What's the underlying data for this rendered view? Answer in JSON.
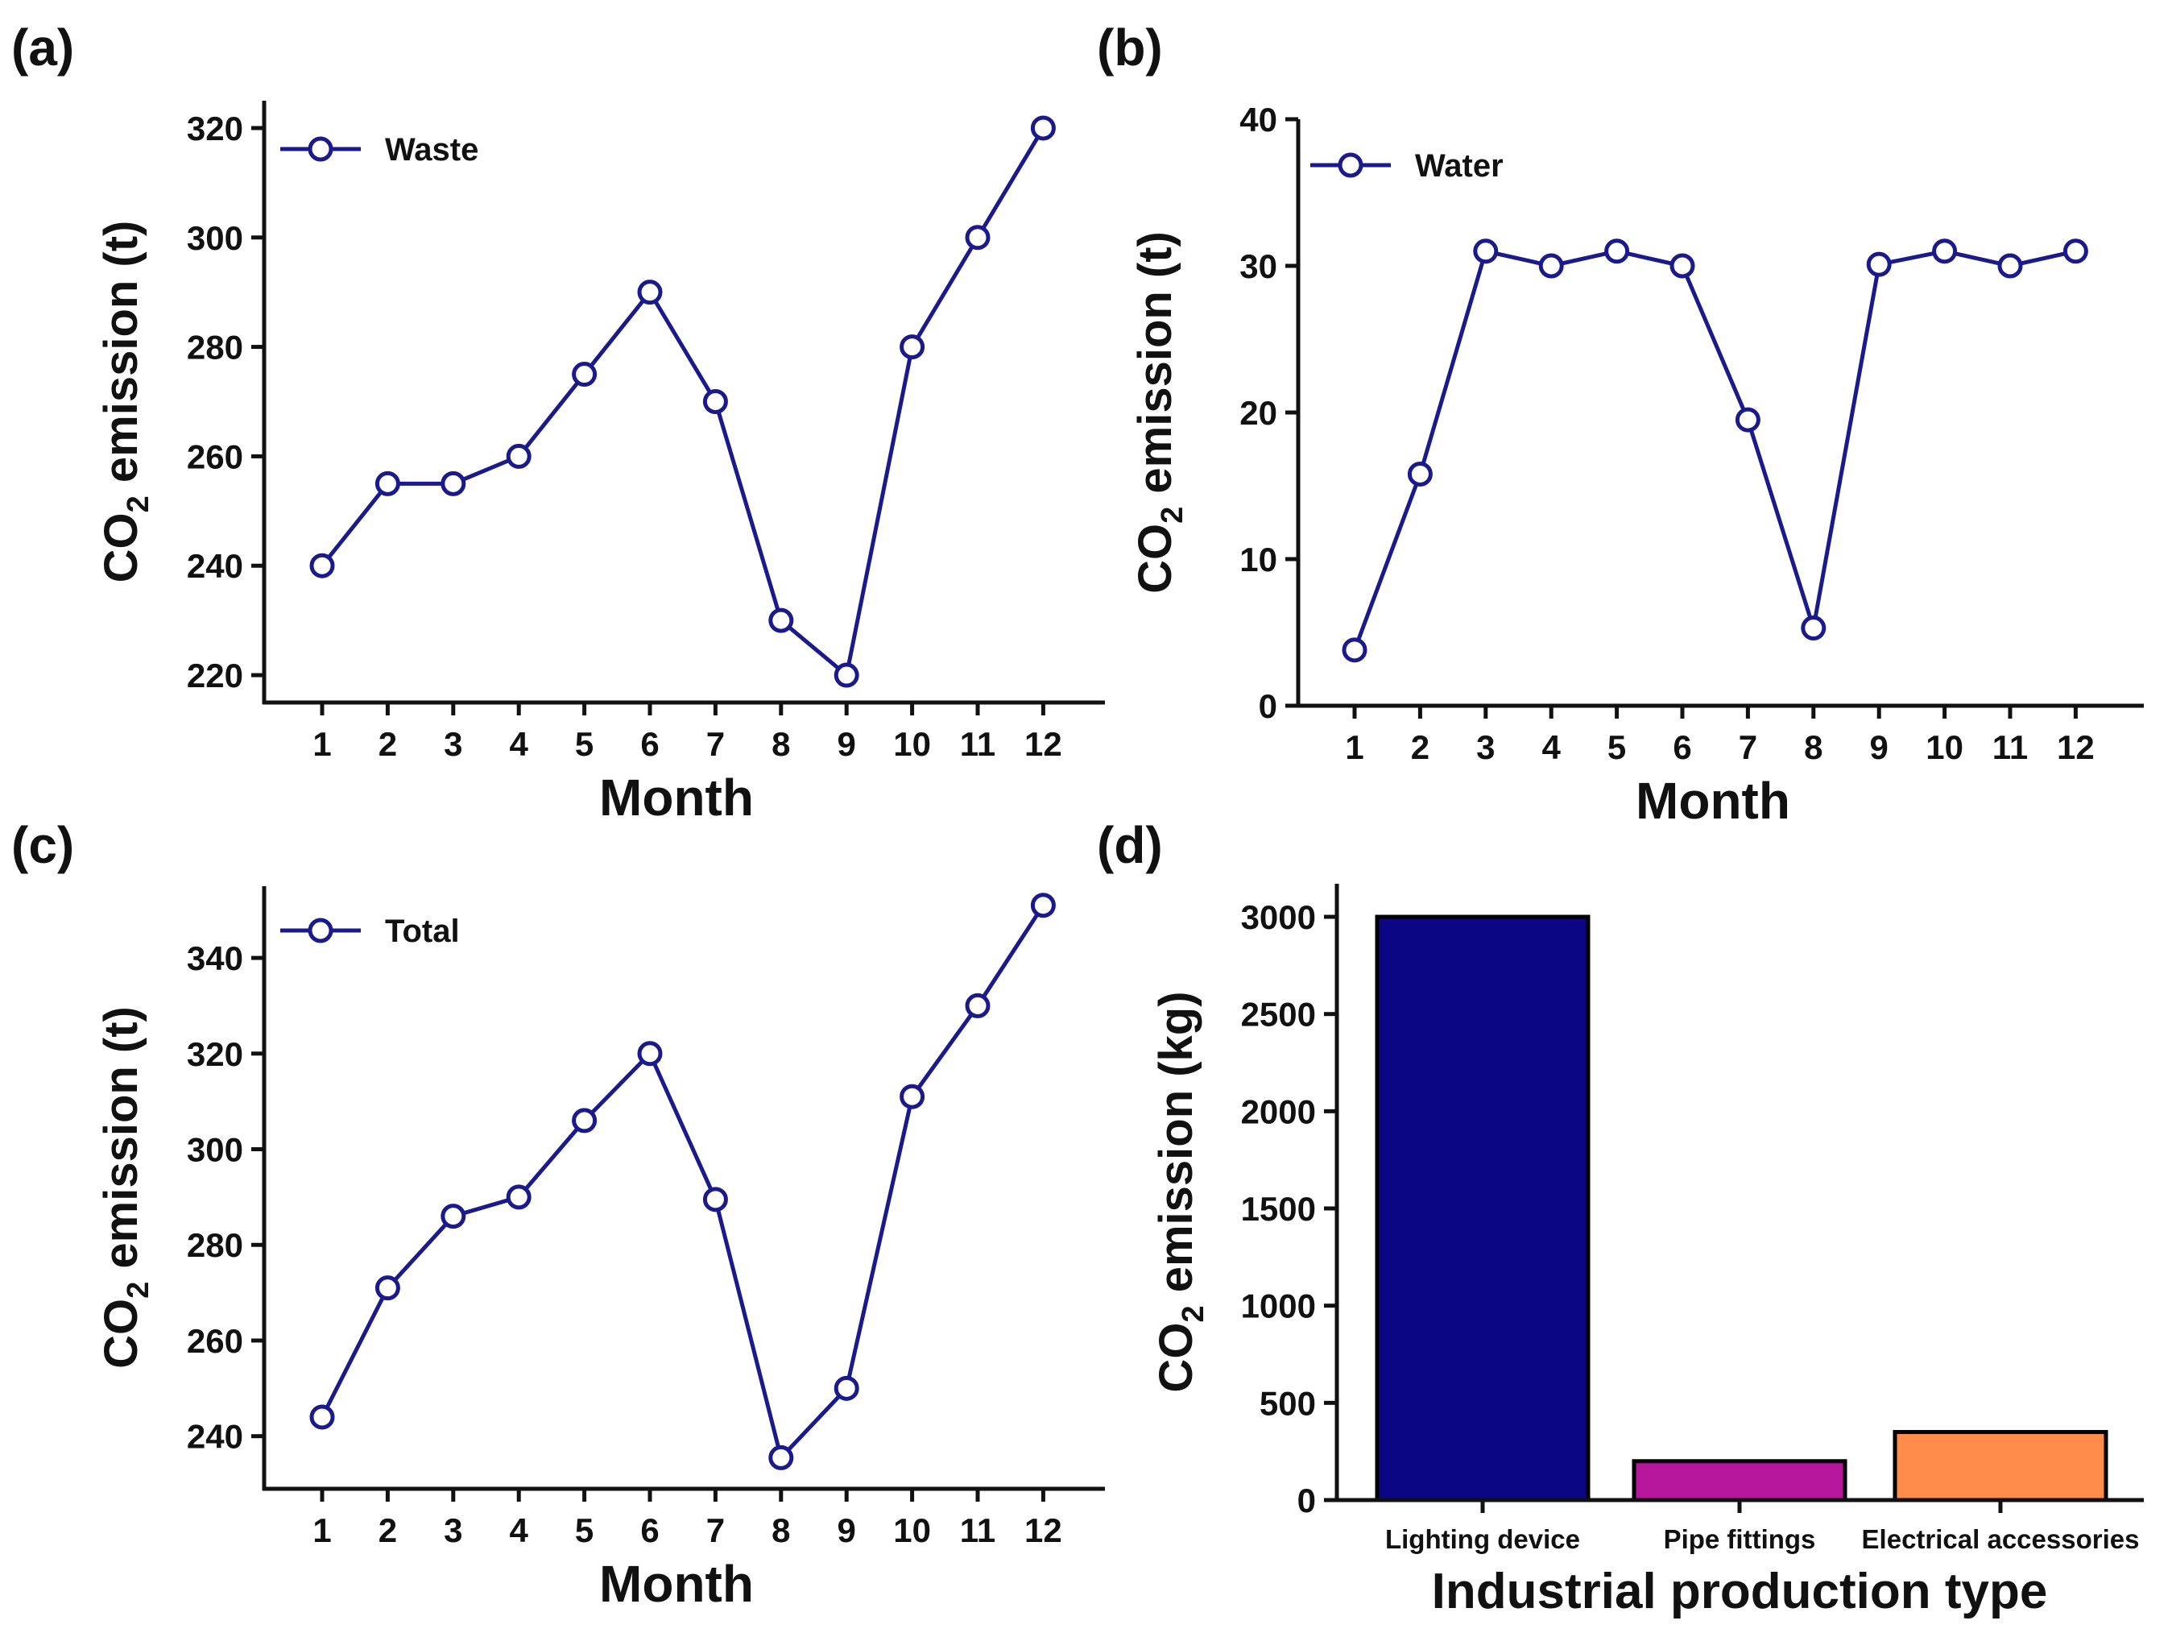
{
  "panel_labels": [
    "(a)",
    "(b)",
    "(c)",
    "(d)"
  ],
  "colors": {
    "line": "#1a1a8c",
    "axis": "#111111",
    "bar_lighting": "#0b0784",
    "bar_pipe": "#b5169c",
    "bar_electrical": "#ff8c4a"
  },
  "chart_data": [
    {
      "id": "a",
      "type": "line",
      "title": "",
      "x": [
        1,
        2,
        3,
        4,
        5,
        6,
        7,
        8,
        9,
        10,
        11,
        12
      ],
      "series": [
        {
          "name": "Waste",
          "values": [
            240,
            255,
            255,
            260,
            275,
            290,
            270,
            230,
            220,
            280,
            300,
            320
          ]
        }
      ],
      "xlabel": "Month",
      "ylabel_main": "CO",
      "ylabel_sub": "2",
      "ylabel_tail": " emission (t)",
      "ylim": [
        215,
        325
      ],
      "yticks": [
        220,
        240,
        260,
        280,
        300,
        320
      ],
      "legend": "top-left"
    },
    {
      "id": "b",
      "type": "line",
      "title": "",
      "x": [
        1,
        2,
        3,
        4,
        5,
        6,
        7,
        8,
        9,
        10,
        11,
        12
      ],
      "series": [
        {
          "name": "Water",
          "values": [
            3.8,
            15.8,
            31,
            30,
            31,
            30,
            19.5,
            5.3,
            30.1,
            31,
            30,
            31
          ]
        }
      ],
      "xlabel": "Month",
      "ylabel_main": "CO",
      "ylabel_sub": "2",
      "ylabel_tail": " emission (t)",
      "ylim": [
        0,
        40
      ],
      "yticks": [
        0,
        10,
        20,
        30,
        40
      ],
      "legend": "top-left"
    },
    {
      "id": "c",
      "type": "line",
      "title": "",
      "x": [
        1,
        2,
        3,
        4,
        5,
        6,
        7,
        8,
        9,
        10,
        11,
        12
      ],
      "series": [
        {
          "name": "Total",
          "values": [
            244,
            271,
            286,
            290,
            306,
            320,
            289.5,
            235.5,
            250,
            311,
            330,
            351
          ]
        }
      ],
      "xlabel": "Month",
      "ylabel_main": "CO",
      "ylabel_sub": "2",
      "ylabel_tail": " emission (t)",
      "ylim": [
        229,
        355
      ],
      "yticks": [
        240,
        260,
        280,
        300,
        320,
        340
      ],
      "legend": "top-left"
    },
    {
      "id": "d",
      "type": "bar",
      "title": "",
      "categories": [
        "Lighting device",
        "Pipe fittings",
        "Electrical accessories"
      ],
      "values": [
        3000,
        200,
        350
      ],
      "xlabel": "Industrial production type",
      "ylabel_main": "CO",
      "ylabel_sub": "2",
      "ylabel_tail": " emission (kg)",
      "ylim": [
        0,
        3170
      ],
      "yticks": [
        0,
        500,
        1000,
        1500,
        2000,
        2500,
        3000
      ]
    }
  ]
}
